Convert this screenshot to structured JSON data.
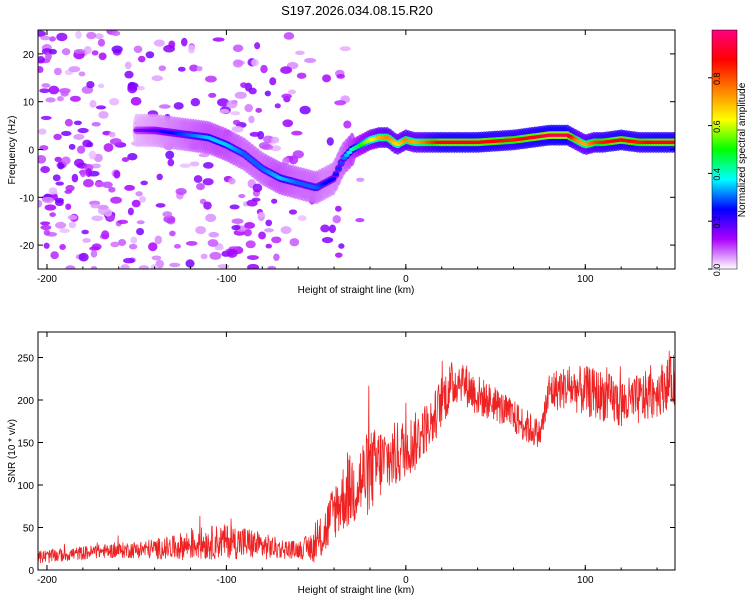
{
  "title": "S197.2026.034.08.15.R20",
  "chart_data": [
    {
      "type": "heatmap",
      "name": "spectrogram",
      "xlabel": "Height of straight line (km)",
      "ylabel": "Frequency (Hz)",
      "xlim": [
        -205,
        150
      ],
      "ylim": [
        -25,
        25
      ],
      "xticks": [
        -200,
        -100,
        0,
        100
      ],
      "yticks": [
        -20,
        -10,
        0,
        10,
        20
      ],
      "ridge": {
        "x": [
          -150,
          -140,
          -130,
          -120,
          -110,
          -100,
          -90,
          -80,
          -70,
          -60,
          -50,
          -45,
          -40,
          -35,
          -30,
          -25,
          -20,
          -15,
          -10,
          -5,
          0,
          5,
          10,
          20,
          40,
          60,
          70,
          80,
          90,
          95,
          100,
          105,
          110,
          120,
          130,
          140,
          150
        ],
        "frequency_hz": [
          4,
          4,
          3.5,
          3,
          2.5,
          1,
          -1,
          -4,
          -6,
          -7,
          -8,
          -7,
          -6,
          -2,
          0,
          1,
          2,
          2.5,
          2.5,
          1,
          2,
          1.5,
          1.5,
          1.5,
          1.5,
          2,
          2.5,
          3,
          3,
          2,
          1,
          1.5,
          1.5,
          2,
          1.5,
          1.5,
          1.5
        ],
        "amplitude": [
          0.15,
          0.2,
          0.25,
          0.3,
          0.35,
          0.35,
          0.3,
          0.3,
          0.35,
          0.3,
          0.3,
          0.25,
          0.25,
          0.3,
          0.4,
          0.5,
          0.6,
          0.7,
          0.75,
          0.65,
          0.75,
          0.7,
          0.75,
          0.9,
          0.9,
          0.85,
          0.9,
          0.95,
          0.95,
          0.75,
          0.7,
          0.8,
          0.85,
          0.9,
          0.85,
          0.9,
          0.9
        ]
      },
      "colorbar": {
        "label": "Normalized spectral amplitude",
        "range": [
          0,
          1
        ],
        "ticks": [
          "0.0",
          "0.2",
          "0.4",
          "0.6",
          "0.8"
        ],
        "colors": [
          "#ffffff",
          "#ab00ff",
          "#0000ff",
          "#00ffff",
          "#00ff00",
          "#ffff00",
          "#ff8000",
          "#ff0000",
          "#ff0080"
        ]
      }
    },
    {
      "type": "line",
      "name": "snr",
      "xlabel": "Height of straight line (km)",
      "ylabel": "SNR (10 * v/v)",
      "xlim": [
        -205,
        150
      ],
      "ylim": [
        0,
        280
      ],
      "xticks": [
        -200,
        -100,
        0,
        100
      ],
      "yticks": [
        0,
        50,
        100,
        150,
        200,
        250
      ],
      "color": "#ee2222",
      "trend": {
        "x": [
          -205,
          -190,
          -170,
          -150,
          -130,
          -120,
          -110,
          -100,
          -90,
          -80,
          -70,
          -60,
          -50,
          -45,
          -40,
          -35,
          -30,
          -25,
          -20,
          -15,
          -10,
          -5,
          0,
          5,
          10,
          15,
          20,
          25,
          30,
          35,
          40,
          50,
          60,
          70,
          75,
          80,
          90,
          100,
          110,
          120,
          130,
          140,
          150
        ],
        "values": [
          15,
          18,
          22,
          24,
          26,
          30,
          32,
          34,
          32,
          28,
          25,
          24,
          28,
          45,
          70,
          85,
          95,
          105,
          115,
          125,
          130,
          135,
          145,
          150,
          165,
          175,
          200,
          215,
          225,
          215,
          205,
          195,
          180,
          165,
          160,
          210,
          215,
          210,
          205,
          195,
          200,
          210,
          225
        ],
        "spread": [
          8,
          8,
          8,
          10,
          14,
          18,
          20,
          20,
          20,
          16,
          12,
          10,
          20,
          30,
          35,
          40,
          45,
          50,
          50,
          45,
          40,
          40,
          35,
          35,
          30,
          30,
          30,
          30,
          25,
          25,
          25,
          20,
          20,
          20,
          15,
          25,
          25,
          30,
          30,
          30,
          30,
          30,
          30
        ]
      }
    }
  ]
}
